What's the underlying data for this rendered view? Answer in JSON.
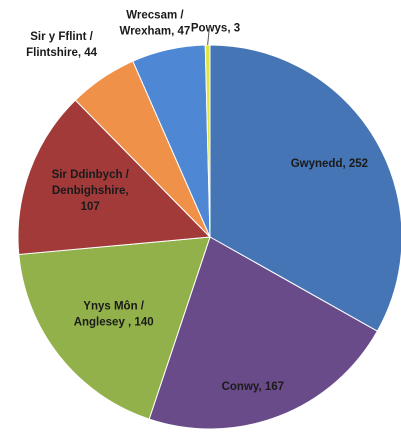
{
  "chart_data": {
    "type": "pie",
    "title": "",
    "start_angle_deg": 0,
    "direction": "clockwise",
    "slices": [
      {
        "label": [
          "Gwynedd, 252"
        ],
        "value": 252,
        "color": "#4575b4"
      },
      {
        "label": [
          "Conwy, 167"
        ],
        "value": 167,
        "color": "#6a4b8a"
      },
      {
        "label": [
          "Ynys Môn /",
          "Anglesey , 140"
        ],
        "value": 140,
        "color": "#92b14a"
      },
      {
        "label": [
          "Sir Ddinbych /",
          "Denbighshire,",
          "107"
        ],
        "value": 107,
        "color": "#a23a39"
      },
      {
        "label": [
          "Sir y Fflint /",
          "Flintshire, 44"
        ],
        "value": 44,
        "color": "#f0914a"
      },
      {
        "label": [
          "Wrecsam /",
          "Wrexham, 47"
        ],
        "value": 47,
        "color": "#4e87d4"
      },
      {
        "label": [
          "Powys, 3"
        ],
        "value": 3,
        "color": "#dfe640"
      }
    ],
    "legend": "none"
  }
}
